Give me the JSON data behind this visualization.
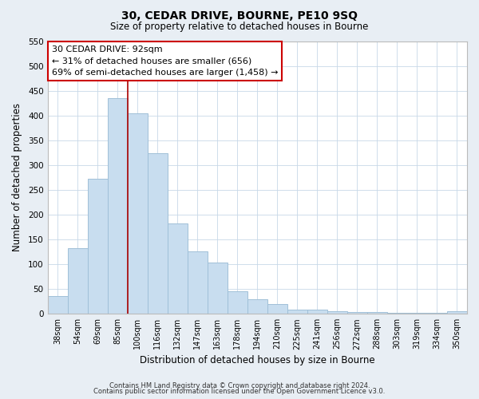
{
  "title": "30, CEDAR DRIVE, BOURNE, PE10 9SQ",
  "subtitle": "Size of property relative to detached houses in Bourne",
  "xlabel": "Distribution of detached houses by size in Bourne",
  "ylabel": "Number of detached properties",
  "categories": [
    "38sqm",
    "54sqm",
    "69sqm",
    "85sqm",
    "100sqm",
    "116sqm",
    "132sqm",
    "147sqm",
    "163sqm",
    "178sqm",
    "194sqm",
    "210sqm",
    "225sqm",
    "241sqm",
    "256sqm",
    "272sqm",
    "288sqm",
    "303sqm",
    "319sqm",
    "334sqm",
    "350sqm"
  ],
  "values": [
    35,
    133,
    273,
    435,
    405,
    324,
    182,
    126,
    103,
    45,
    30,
    20,
    8,
    8,
    5,
    3,
    3,
    2,
    2,
    2,
    5
  ],
  "bar_color": "#c8ddef",
  "bar_edge_color": "#a0c0d8",
  "vline_x_index": 3,
  "vline_color": "#aa0000",
  "annotation_title": "30 CEDAR DRIVE: 92sqm",
  "annotation_line1": "← 31% of detached houses are smaller (656)",
  "annotation_line2": "69% of semi-detached houses are larger (1,458) →",
  "annotation_box_edge_color": "#cc0000",
  "annotation_box_face_color": "#ffffff",
  "ylim": [
    0,
    550
  ],
  "yticks": [
    0,
    50,
    100,
    150,
    200,
    250,
    300,
    350,
    400,
    450,
    500,
    550
  ],
  "footer1": "Contains HM Land Registry data © Crown copyright and database right 2024.",
  "footer2": "Contains public sector information licensed under the Open Government Licence v3.0.",
  "background_color": "#e8eef4",
  "plot_background_color": "#ffffff",
  "grid_color": "#c8d8e8"
}
